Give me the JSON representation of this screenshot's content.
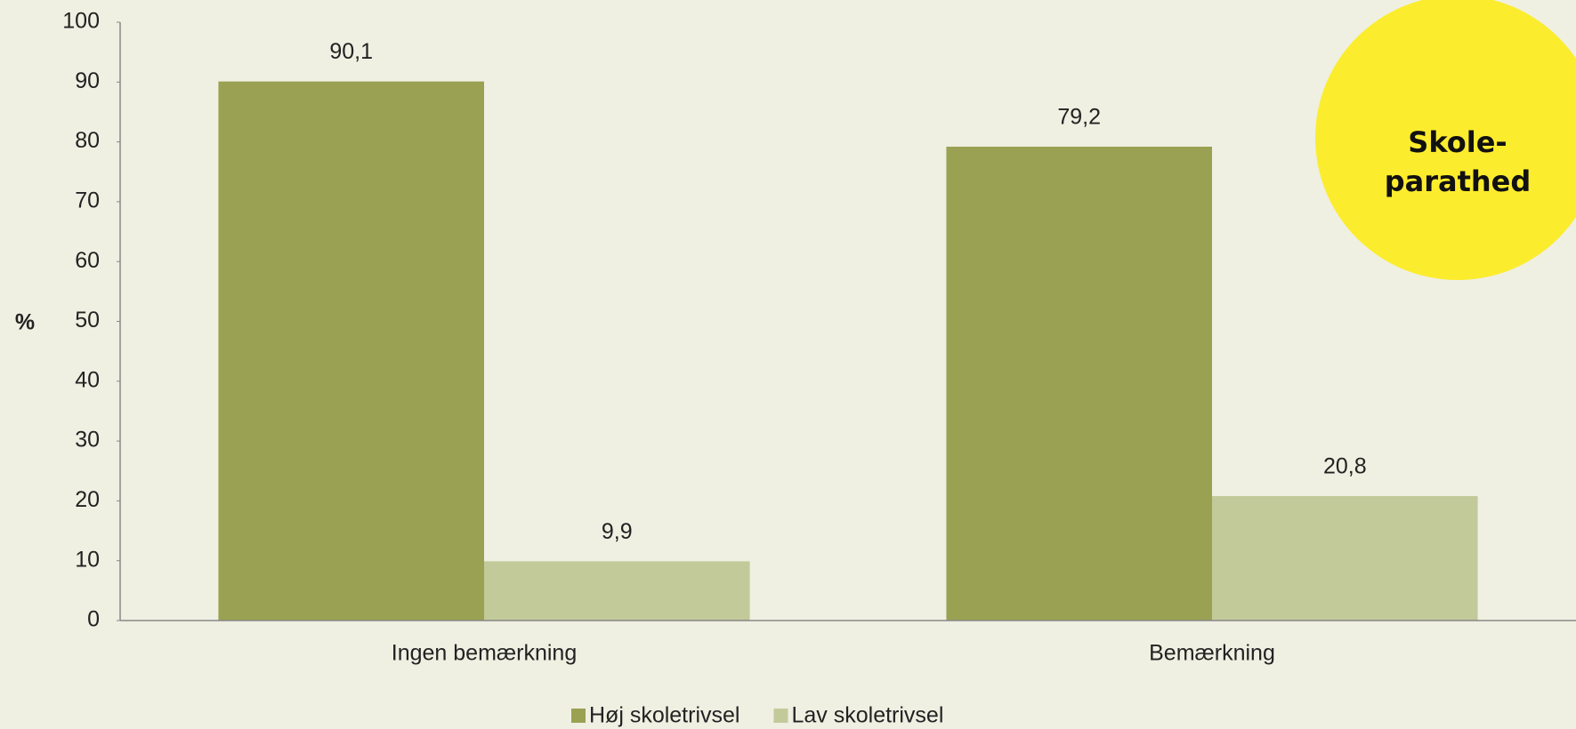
{
  "chart_data": {
    "type": "bar",
    "categories": [
      "Ingen bemærkning",
      "Bemærkning"
    ],
    "series": [
      {
        "name": "Høj skoletrivsel",
        "color": "#9aa153",
        "values": [
          90.1,
          79.2
        ],
        "value_labels": [
          "90,1",
          "79,2"
        ]
      },
      {
        "name": "Lav skoletrivsel",
        "color": "#c3ca9a",
        "values": [
          9.9,
          20.8
        ],
        "value_labels": [
          "9,9",
          "20,8"
        ]
      }
    ],
    "ylabel": "%",
    "ylim": [
      0,
      100
    ],
    "yticks": [
      0,
      10,
      20,
      30,
      40,
      50,
      60,
      70,
      80,
      90,
      100
    ],
    "legend": "bottom",
    "annotation": [
      "Skole-",
      "parathed"
    ],
    "annotation_color": "#fcec2e"
  }
}
